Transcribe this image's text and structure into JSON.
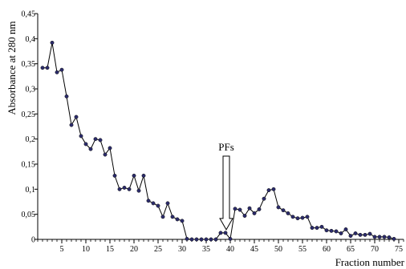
{
  "chart_data": {
    "type": "line",
    "title": "",
    "xlabel": "Fraction number",
    "ylabel": "Absorbance at 280 nm",
    "xlim": [
      0,
      76
    ],
    "ylim": [
      0,
      0.45
    ],
    "x_ticks": [
      5,
      10,
      15,
      20,
      25,
      30,
      35,
      40,
      45,
      50,
      55,
      60,
      65,
      70,
      75
    ],
    "y_ticks": [
      {
        "value": 0,
        "label": "0"
      },
      {
        "value": 0.05,
        "label": "0,05"
      },
      {
        "value": 0.1,
        "label": "0,1"
      },
      {
        "value": 0.15,
        "label": "0,15"
      },
      {
        "value": 0.2,
        "label": "0,2"
      },
      {
        "value": 0.25,
        "label": "0,25"
      },
      {
        "value": 0.3,
        "label": "0,3"
      },
      {
        "value": 0.35,
        "label": "0,35"
      },
      {
        "value": 0.4,
        "label": "0,4"
      },
      {
        "value": 0.45,
        "label": "0,45"
      }
    ],
    "grid": false,
    "legend": "none",
    "line_color": "#000000",
    "marker_color": "#2b2b6b",
    "series": [
      {
        "x": [
          1,
          2,
          3,
          4,
          5,
          6,
          7,
          8,
          9,
          10,
          11,
          12,
          13,
          14,
          15,
          16,
          17,
          18,
          19,
          20,
          21,
          22,
          23,
          24,
          25,
          26,
          27,
          28,
          29,
          30,
          31,
          32,
          33,
          34,
          35,
          36,
          37,
          38,
          39,
          40,
          41,
          42,
          43,
          44,
          45,
          46,
          47,
          48,
          49,
          50,
          51,
          52,
          53,
          54,
          55,
          56,
          57,
          58,
          59,
          60,
          61,
          62,
          63,
          64,
          65,
          66,
          67,
          68,
          69,
          70,
          71,
          72,
          73,
          74
        ],
        "values": [
          0.342,
          0.342,
          0.392,
          0.333,
          0.338,
          0.285,
          0.228,
          0.244,
          0.206,
          0.19,
          0.18,
          0.2,
          0.198,
          0.169,
          0.182,
          0.127,
          0.1,
          0.103,
          0.1,
          0.127,
          0.097,
          0.127,
          0.077,
          0.072,
          0.067,
          0.045,
          0.072,
          0.045,
          0.04,
          0.037,
          0.001,
          0.0,
          0.0,
          0.0,
          0.0,
          0.0,
          0.0,
          0.013,
          0.013,
          0.001,
          0.061,
          0.059,
          0.047,
          0.062,
          0.052,
          0.06,
          0.081,
          0.098,
          0.1,
          0.064,
          0.058,
          0.052,
          0.045,
          0.042,
          0.043,
          0.045,
          0.023,
          0.023,
          0.025,
          0.018,
          0.017,
          0.016,
          0.012,
          0.02,
          0.007,
          0.012,
          0.009,
          0.009,
          0.011,
          0.005,
          0.005,
          0.005,
          0.004,
          0.001
        ]
      }
    ],
    "annotations": [
      {
        "text": "PFs",
        "x": 39,
        "arrow_tip_y": 0.013
      }
    ]
  }
}
